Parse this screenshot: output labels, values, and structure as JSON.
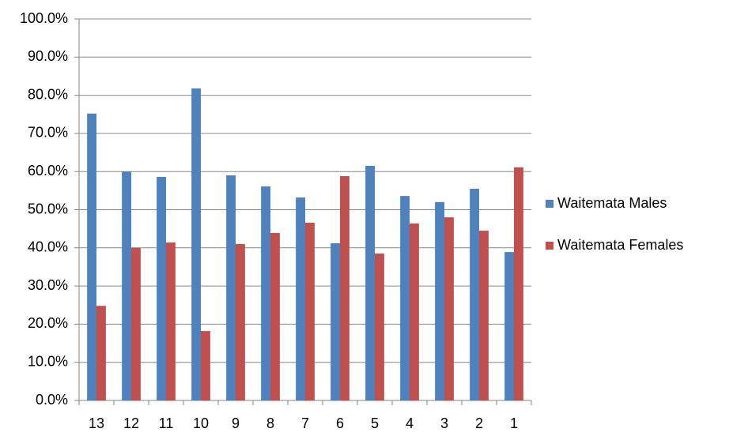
{
  "chart_data": {
    "type": "bar",
    "categories": [
      "13",
      "12",
      "11",
      "10",
      "9",
      "8",
      "7",
      "6",
      "5",
      "4",
      "3",
      "2",
      "1"
    ],
    "series": [
      {
        "name": "Waitemata Males",
        "color": "#4f81bd",
        "values": [
          75.2,
          60.0,
          58.6,
          81.8,
          59.0,
          56.1,
          53.2,
          41.2,
          61.5,
          53.6,
          52.0,
          55.5,
          38.9
        ]
      },
      {
        "name": "Waitemata Females",
        "color": "#c0504d",
        "values": [
          24.8,
          40.0,
          41.4,
          18.2,
          41.0,
          43.9,
          46.6,
          58.8,
          38.5,
          46.4,
          48.0,
          44.5,
          61.1
        ]
      }
    ],
    "ylim": [
      0,
      100
    ],
    "yticks": [
      {
        "value": 0,
        "label": "0.0%"
      },
      {
        "value": 10,
        "label": "10.0%"
      },
      {
        "value": 20,
        "label": "20.0%"
      },
      {
        "value": 30,
        "label": "30.0%"
      },
      {
        "value": 40,
        "label": "40.0%"
      },
      {
        "value": 50,
        "label": "50.0%"
      },
      {
        "value": 60,
        "label": "60.0%"
      },
      {
        "value": 70,
        "label": "70.0%"
      },
      {
        "value": 80,
        "label": "80.0%"
      },
      {
        "value": 90,
        "label": "90.0%"
      },
      {
        "value": 100,
        "label": "100.0%"
      }
    ],
    "grid": true,
    "legend": "right"
  }
}
